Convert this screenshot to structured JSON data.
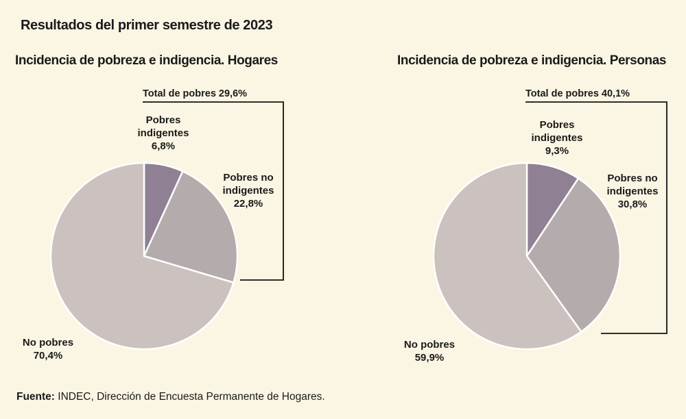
{
  "heading": "Resultados del primer semestre de 2023",
  "source": {
    "label": "Fuente:",
    "text": " INDEC, Dirección de Encuesta Permanente de Hogares."
  },
  "colors": {
    "indigentes": "#8f8093",
    "no_indigentes": "#b4abac",
    "no_pobres": "#cbc1bf",
    "background": "#fbf5e3"
  },
  "chart_data": [
    {
      "type": "pie",
      "title": "Incidencia de pobreza e indigencia. Hogares",
      "slices": [
        {
          "label_lines": [
            "Pobres",
            "indigentes",
            "6,8%"
          ],
          "value": 6.8,
          "color_key": "indigentes"
        },
        {
          "label_lines": [
            "Pobres no",
            "indigentes",
            "22,8%"
          ],
          "value": 22.8,
          "color_key": "no_indigentes"
        },
        {
          "label_lines": [
            "No pobres",
            "70,4%"
          ],
          "value": 70.4,
          "color_key": "no_pobres"
        }
      ],
      "bracket_label": "Total de pobres 29,6%"
    },
    {
      "type": "pie",
      "title": "Incidencia de pobreza e indigencia. Personas",
      "slices": [
        {
          "label_lines": [
            "Pobres",
            "indigentes",
            "9,3%"
          ],
          "value": 9.3,
          "color_key": "indigentes"
        },
        {
          "label_lines": [
            "Pobres no",
            "indigentes",
            "30,8%"
          ],
          "value": 30.8,
          "color_key": "no_indigentes"
        },
        {
          "label_lines": [
            "No pobres",
            "59,9%"
          ],
          "value": 59.9,
          "color_key": "no_pobres"
        }
      ],
      "bracket_label": "Total de pobres 40,1%"
    }
  ]
}
